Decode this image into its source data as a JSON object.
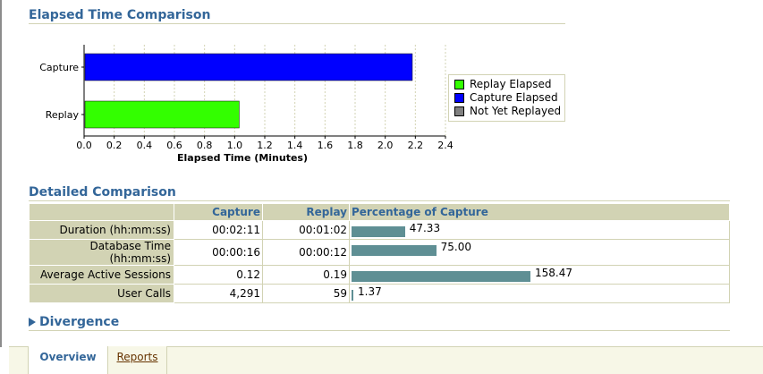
{
  "elapsed_section": {
    "title": "Elapsed Time Comparison"
  },
  "chart_data": {
    "type": "bar",
    "orientation": "horizontal",
    "categories": [
      "Capture",
      "Replay"
    ],
    "series": [
      {
        "name": "Capture Elapsed",
        "color": "#0000ff",
        "values": [
          2.18,
          null
        ]
      },
      {
        "name": "Replay Elapsed",
        "color": "#33ff00",
        "values": [
          null,
          1.03
        ]
      }
    ],
    "xlabel": "Elapsed Time (Minutes)",
    "ylabel": "",
    "xlim": [
      0,
      2.4
    ],
    "xticks": [
      "0.0",
      "0.2",
      "0.4",
      "0.6",
      "0.8",
      "1.0",
      "1.2",
      "1.4",
      "1.6",
      "1.8",
      "2.0",
      "2.2",
      "2.4"
    ],
    "grid": true,
    "legend_position": "right",
    "legend": [
      {
        "label": "Replay Elapsed",
        "color": "#33ff00"
      },
      {
        "label": "Capture Elapsed",
        "color": "#0000ff"
      },
      {
        "label": "Not Yet Replayed",
        "color": "#808080"
      }
    ]
  },
  "detailed_section": {
    "title": "Detailed Comparison",
    "headers": {
      "blank": "",
      "capture": "Capture",
      "replay": "Replay",
      "pct": "Percentage of Capture"
    },
    "rows": [
      {
        "label": "Duration (hh:mm:ss)",
        "capture": "00:02:11",
        "replay": "00:01:02",
        "pct": "47.33",
        "pct_value": 47.33
      },
      {
        "label": "Database Time (hh:mm:ss)",
        "capture": "00:00:16",
        "replay": "00:00:12",
        "pct": "75.00",
        "pct_value": 75.0
      },
      {
        "label": "Average Active Sessions",
        "capture": "0.12",
        "replay": "0.19",
        "pct": "158.47",
        "pct_value": 158.47
      },
      {
        "label": "User Calls",
        "capture": "4,291",
        "replay": "59",
        "pct": "1.37",
        "pct_value": 1.37
      }
    ],
    "bar_color": "#5f8f94"
  },
  "divergence": {
    "label": "Divergence",
    "icon": "expand-triangle-icon"
  },
  "tabs": [
    {
      "label": "Overview",
      "selected": true
    },
    {
      "label": "Reports",
      "selected": false
    }
  ]
}
